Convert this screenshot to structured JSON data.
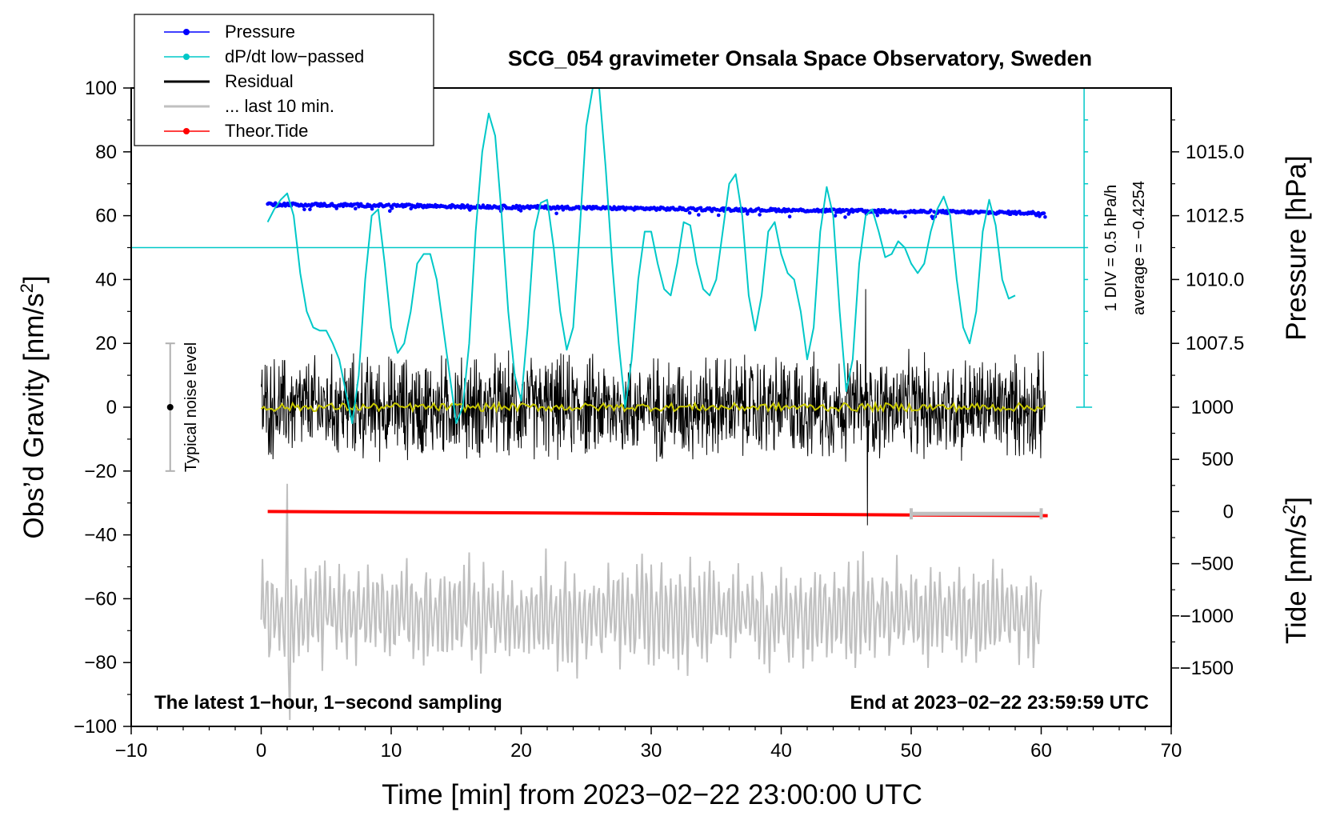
{
  "chart_data": {
    "type": "line",
    "title": "SCG_054 gravimeter Onsala Space Observatory, Sweden",
    "xlabel": "Time [min] from 2023−02−22 23:00:00 UTC",
    "ylabel": "Obs’d Gravity [nm/s",
    "ylabel_sup": "2",
    "ylabel_close": "]",
    "y2label": "Pressure [hPa]",
    "y3label": "Tide [nm/s",
    "y3label_sup": "2",
    "y3label_close": "]",
    "xlim": [
      -10,
      70
    ],
    "ylim": [
      -100,
      100
    ],
    "x_ticks": [
      "−10",
      "0",
      "10",
      "20",
      "30",
      "40",
      "50",
      "60",
      "70"
    ],
    "y_ticks": [
      "100",
      "80",
      "60",
      "40",
      "20",
      "0",
      "−20",
      "−40",
      "−60",
      "−80",
      "−100"
    ],
    "pressure_ticks": [
      "1015.0",
      "1012.5",
      "1010.0",
      "1007.5"
    ],
    "tide_ticks": [
      "1000",
      "500",
      "0",
      "−500",
      "−1000",
      "−1500"
    ],
    "pressure_axis": {
      "label_values": [
        1015.0,
        1012.5,
        1010.0,
        1007.5
      ],
      "value_at_gravity_80": 1015.0,
      "hpa_per_20_gravity": 2.5
    },
    "tide_axis": {
      "label_values": [
        1000,
        500,
        0,
        -500,
        -1000,
        -1500
      ],
      "value_at_gravity_0": 1000,
      "nm_per_gravity_unit": 30.6
    },
    "pressure_series": {
      "name": "Pressure",
      "color": "#0000ff",
      "start_hpa": 1012.95,
      "end_hpa": 1012.6,
      "x_range": [
        0.5,
        60.3
      ]
    },
    "dpdt_series": {
      "name": "dP/dt low−passed",
      "color": "#00c8c8",
      "zero_line_gravity": 50,
      "x": [
        0.5,
        1,
        1.5,
        2,
        2.5,
        3,
        3.5,
        4,
        4.5,
        5,
        5.5,
        6,
        6.5,
        7,
        7.5,
        8,
        8.5,
        9,
        9.5,
        10,
        10.5,
        11,
        11.5,
        12,
        12.5,
        13,
        13.5,
        14,
        14.5,
        15,
        15.5,
        16,
        16.5,
        17,
        17.5,
        18,
        18.5,
        19,
        19.5,
        20,
        20.5,
        21,
        21.5,
        22,
        22.5,
        23,
        23.5,
        24,
        24.5,
        25,
        25.5,
        26,
        26.5,
        27,
        27.5,
        28,
        28.5,
        29,
        29.5,
        30,
        30.5,
        31,
        31.5,
        32,
        32.5,
        33,
        33.5,
        34,
        34.5,
        35,
        35.5,
        36,
        36.5,
        37,
        37.5,
        38,
        38.5,
        39,
        39.5,
        40,
        40.5,
        41,
        41.5,
        42,
        42.5,
        43,
        43.5,
        44,
        44.5,
        45,
        45.5,
        46,
        46.5,
        47,
        47.5,
        48,
        48.5,
        49,
        49.5,
        50,
        50.5,
        51,
        51.5,
        52,
        52.5,
        53,
        53.5,
        54,
        54.5,
        55,
        55.5,
        56,
        56.5,
        57,
        57.5,
        58
      ],
      "y": [
        58,
        62,
        65,
        67,
        60,
        42,
        30,
        25,
        24,
        24,
        20,
        15,
        5,
        -5,
        10,
        40,
        60,
        62,
        45,
        25,
        17,
        20,
        30,
        45,
        48,
        48,
        40,
        25,
        10,
        -5,
        0,
        20,
        55,
        80,
        92,
        85,
        60,
        30,
        10,
        2,
        25,
        55,
        64,
        65,
        50,
        30,
        18,
        25,
        55,
        88,
        102,
        100,
        75,
        45,
        20,
        0,
        15,
        40,
        55,
        55,
        45,
        37,
        35,
        45,
        58,
        57,
        45,
        37,
        35,
        40,
        55,
        70,
        73,
        60,
        35,
        24,
        35,
        55,
        58,
        48,
        42,
        40,
        30,
        15,
        25,
        55,
        69,
        60,
        30,
        5,
        15,
        45,
        60,
        62,
        55,
        47,
        48,
        52,
        50,
        45,
        42,
        45,
        55,
        62,
        66,
        60,
        40,
        25,
        20,
        30,
        55,
        65,
        57,
        40,
        34,
        35
      ]
    },
    "residual_series": {
      "name": "Residual",
      "color": "#000000",
      "x_range": [
        0,
        60.3
      ],
      "typical_amplitude": 16,
      "max_peak": 37,
      "min_peak": -37
    },
    "smoothed_residual": {
      "color": "#c8c800",
      "level": 0
    },
    "last10_series": {
      "name": "... last 10 min.",
      "color": "#c0c0c0",
      "x_range": [
        0,
        60
      ],
      "center_gravity": -65,
      "typical_amplitude": 15,
      "max_peak": -24,
      "min_peak": -98
    },
    "tide_series": {
      "name": "Theor.Tide",
      "color": "#ff0000",
      "x": [
        0.5,
        60.5
      ],
      "tide_values": [
        0,
        -40
      ]
    },
    "last10_bracket": {
      "x_range": [
        50,
        60
      ],
      "gravity": -33.4
    },
    "noise_bar": {
      "label": "Typical noise level",
      "x": -7,
      "y_range": [
        -20,
        20
      ],
      "center": 0
    },
    "legend": [
      {
        "label": "Pressure",
        "color": "#0000ff",
        "marker": "dot"
      },
      {
        "label": "dP/dt low−passed",
        "color": "#00c8c8",
        "marker": "dot"
      },
      {
        "label": "Residual",
        "color": "#000000",
        "marker": "none"
      },
      {
        "label": "... last 10 min.",
        "color": "#c0c0c0",
        "marker": "none"
      },
      {
        "label": "Theor.Tide",
        "color": "#ff0000",
        "marker": "dot"
      }
    ],
    "legend_position": "top-left",
    "annotations": {
      "bottom_left": "The latest 1−hour, 1−second sampling",
      "bottom_right": "End at 2023−02−22 23:59:59 UTC",
      "div_label": "1 DIV = 0.5 hPa/h",
      "average_label": "average = −0.4254"
    }
  }
}
